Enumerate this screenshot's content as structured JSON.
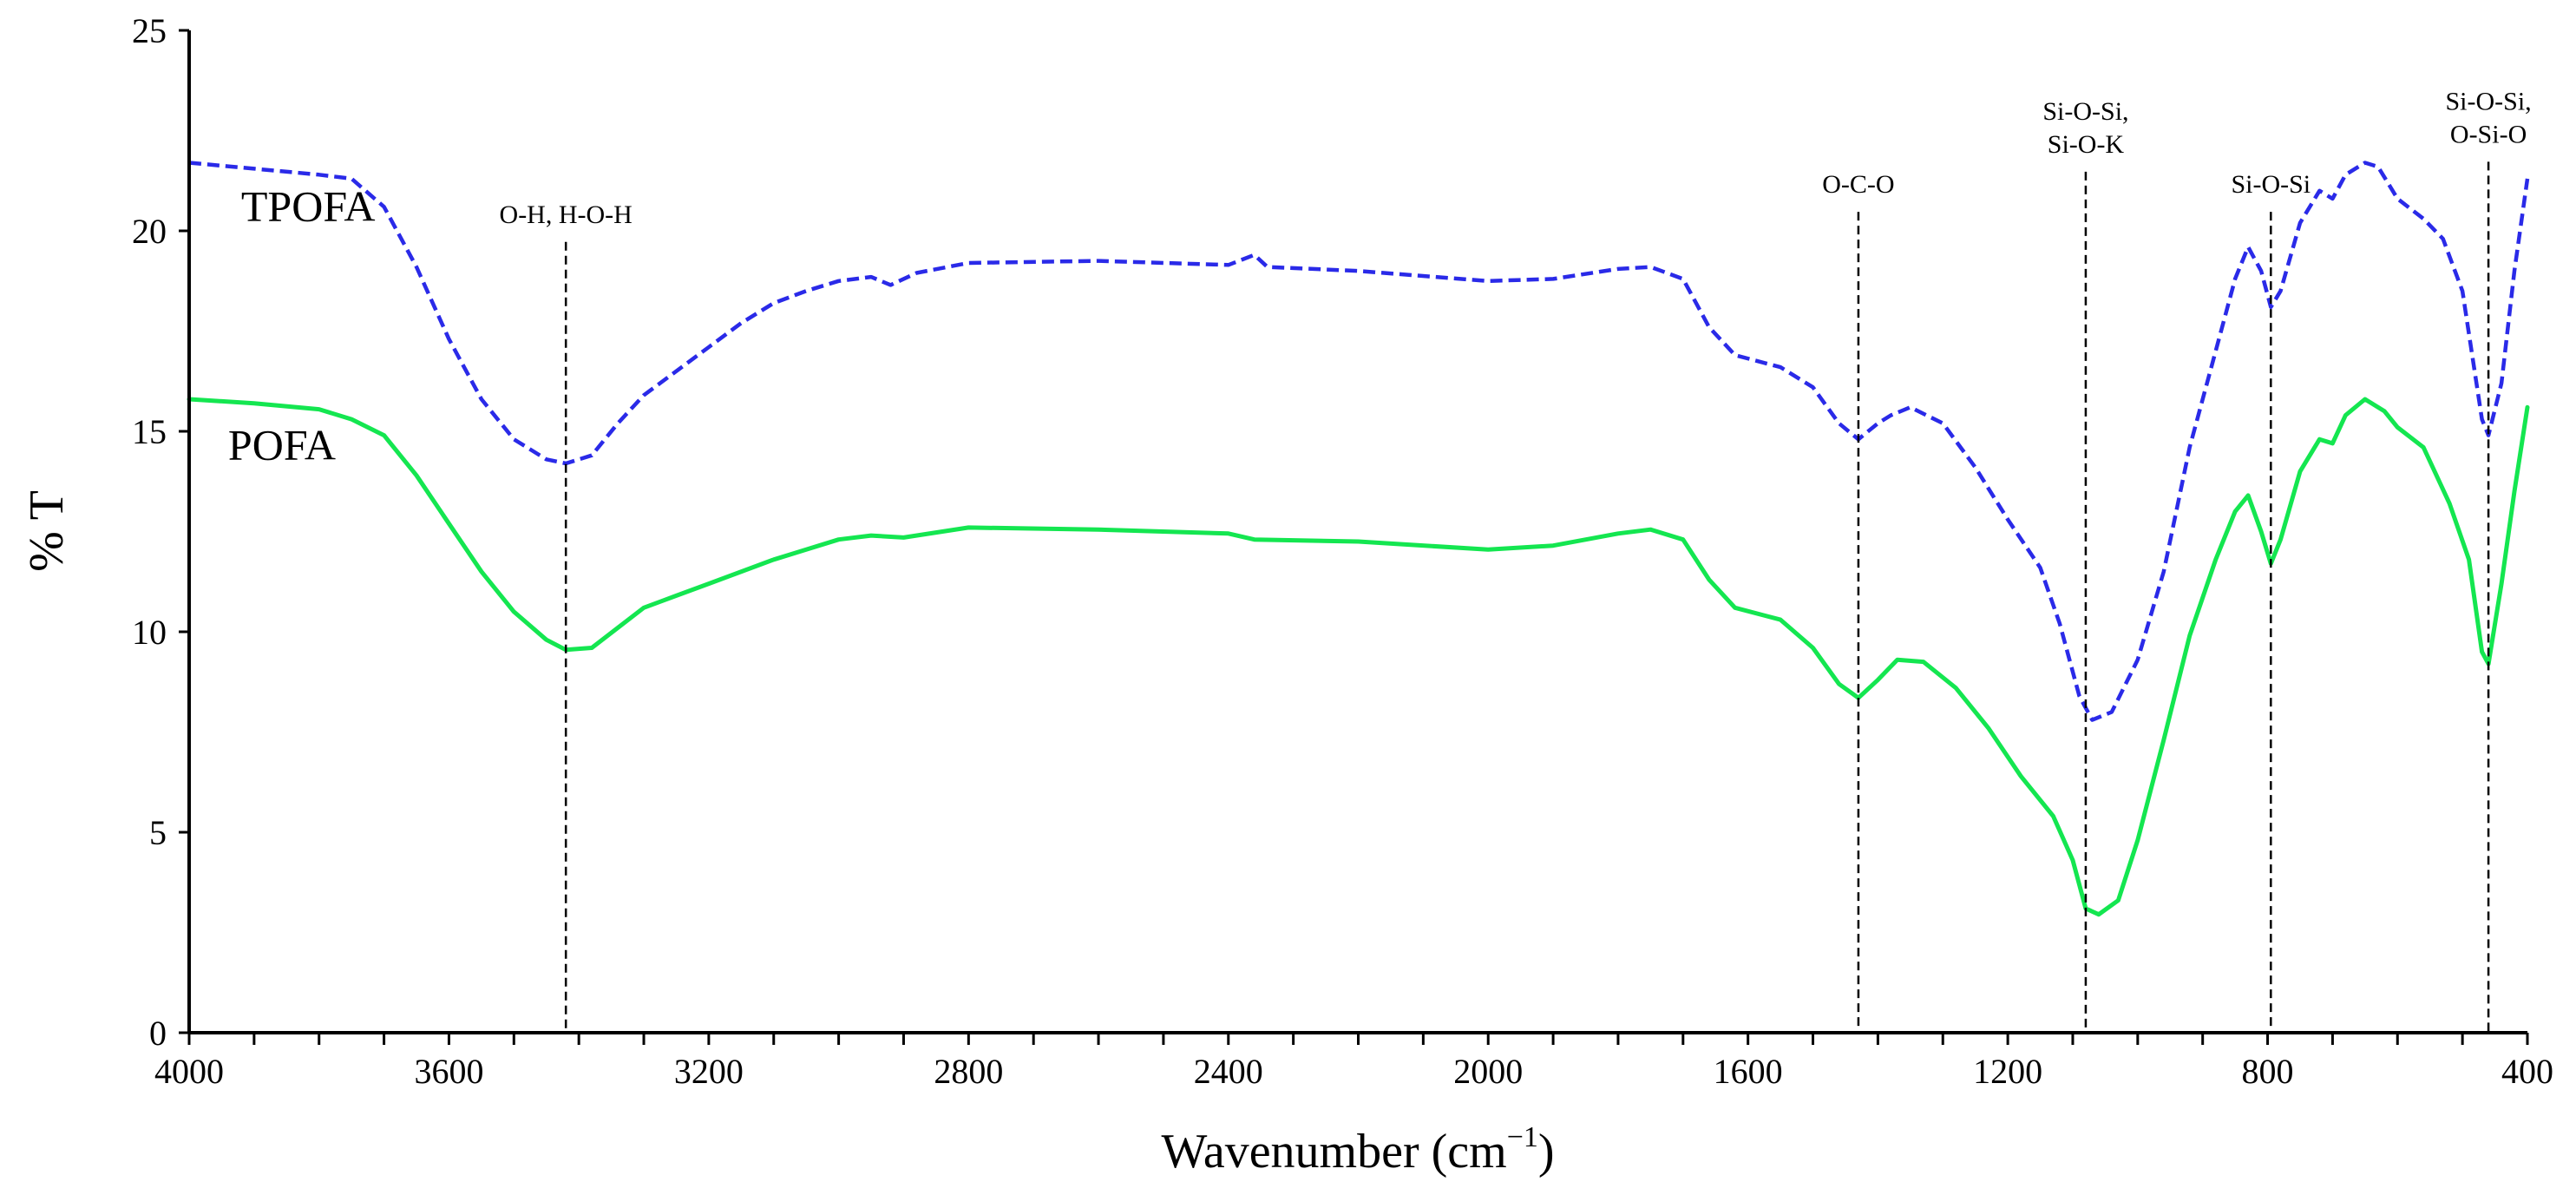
{
  "chart_data": {
    "type": "line",
    "title": "",
    "xlabel": "Wavenumber (cm",
    "xlabel_sup": "−1",
    "xlabel_close": ")",
    "ylabel": "% T",
    "xlim": [
      4000,
      400
    ],
    "ylim": [
      0,
      25
    ],
    "x_ticks": [
      4000,
      3600,
      3200,
      2800,
      2400,
      2000,
      1600,
      1200,
      800,
      400
    ],
    "y_ticks": [
      0,
      5,
      10,
      15,
      20,
      25
    ],
    "grid": false,
    "series": [
      {
        "name": "TPOFA",
        "color": "#2a2ae8",
        "style": "dashed",
        "points": [
          [
            4000,
            21.7
          ],
          [
            3900,
            21.55
          ],
          [
            3800,
            21.4
          ],
          [
            3750,
            21.3
          ],
          [
            3700,
            20.6
          ],
          [
            3650,
            19.1
          ],
          [
            3600,
            17.3
          ],
          [
            3550,
            15.8
          ],
          [
            3500,
            14.8
          ],
          [
            3450,
            14.3
          ],
          [
            3420,
            14.2
          ],
          [
            3380,
            14.4
          ],
          [
            3340,
            15.2
          ],
          [
            3300,
            15.9
          ],
          [
            3250,
            16.5
          ],
          [
            3200,
            17.1
          ],
          [
            3150,
            17.7
          ],
          [
            3100,
            18.2
          ],
          [
            3050,
            18.5
          ],
          [
            3000,
            18.75
          ],
          [
            2950,
            18.85
          ],
          [
            2920,
            18.65
          ],
          [
            2880,
            18.95
          ],
          [
            2800,
            19.2
          ],
          [
            2600,
            19.25
          ],
          [
            2400,
            19.15
          ],
          [
            2360,
            19.4
          ],
          [
            2340,
            19.1
          ],
          [
            2200,
            19.0
          ],
          [
            2000,
            18.75
          ],
          [
            1900,
            18.8
          ],
          [
            1800,
            19.05
          ],
          [
            1750,
            19.1
          ],
          [
            1700,
            18.8
          ],
          [
            1660,
            17.6
          ],
          [
            1620,
            16.9
          ],
          [
            1550,
            16.6
          ],
          [
            1500,
            16.1
          ],
          [
            1460,
            15.2
          ],
          [
            1430,
            14.8
          ],
          [
            1400,
            15.2
          ],
          [
            1380,
            15.4
          ],
          [
            1350,
            15.6
          ],
          [
            1300,
            15.2
          ],
          [
            1250,
            14.1
          ],
          [
            1200,
            12.8
          ],
          [
            1150,
            11.6
          ],
          [
            1120,
            10.2
          ],
          [
            1090,
            8.4
          ],
          [
            1070,
            7.8
          ],
          [
            1040,
            8.0
          ],
          [
            1000,
            9.3
          ],
          [
            960,
            11.5
          ],
          [
            920,
            14.6
          ],
          [
            880,
            17.0
          ],
          [
            850,
            18.8
          ],
          [
            830,
            19.6
          ],
          [
            810,
            19.0
          ],
          [
            795,
            18.1
          ],
          [
            780,
            18.5
          ],
          [
            750,
            20.2
          ],
          [
            720,
            21.0
          ],
          [
            700,
            20.8
          ],
          [
            680,
            21.4
          ],
          [
            650,
            21.7
          ],
          [
            630,
            21.6
          ],
          [
            600,
            20.8
          ],
          [
            560,
            20.3
          ],
          [
            530,
            19.8
          ],
          [
            500,
            18.5
          ],
          [
            470,
            15.3
          ],
          [
            460,
            14.9
          ],
          [
            440,
            16.2
          ],
          [
            420,
            19.0
          ],
          [
            400,
            21.3
          ]
        ]
      },
      {
        "name": "POFA",
        "color": "#14e650",
        "style": "solid",
        "points": [
          [
            4000,
            15.8
          ],
          [
            3900,
            15.7
          ],
          [
            3800,
            15.55
          ],
          [
            3750,
            15.3
          ],
          [
            3700,
            14.9
          ],
          [
            3650,
            13.9
          ],
          [
            3600,
            12.7
          ],
          [
            3550,
            11.5
          ],
          [
            3500,
            10.5
          ],
          [
            3450,
            9.8
          ],
          [
            3420,
            9.55
          ],
          [
            3380,
            9.6
          ],
          [
            3340,
            10.1
          ],
          [
            3300,
            10.6
          ],
          [
            3250,
            10.9
          ],
          [
            3200,
            11.2
          ],
          [
            3100,
            11.8
          ],
          [
            3000,
            12.3
          ],
          [
            2950,
            12.4
          ],
          [
            2900,
            12.35
          ],
          [
            2800,
            12.6
          ],
          [
            2600,
            12.55
          ],
          [
            2400,
            12.45
          ],
          [
            2360,
            12.3
          ],
          [
            2200,
            12.25
          ],
          [
            2000,
            12.05
          ],
          [
            1900,
            12.15
          ],
          [
            1800,
            12.45
          ],
          [
            1750,
            12.55
          ],
          [
            1700,
            12.3
          ],
          [
            1660,
            11.3
          ],
          [
            1620,
            10.6
          ],
          [
            1550,
            10.3
          ],
          [
            1500,
            9.6
          ],
          [
            1460,
            8.7
          ],
          [
            1430,
            8.35
          ],
          [
            1400,
            8.8
          ],
          [
            1370,
            9.3
          ],
          [
            1330,
            9.25
          ],
          [
            1280,
            8.6
          ],
          [
            1230,
            7.6
          ],
          [
            1180,
            6.4
          ],
          [
            1130,
            5.4
          ],
          [
            1100,
            4.3
          ],
          [
            1080,
            3.1
          ],
          [
            1060,
            2.95
          ],
          [
            1030,
            3.3
          ],
          [
            1000,
            4.8
          ],
          [
            960,
            7.3
          ],
          [
            920,
            9.9
          ],
          [
            880,
            11.8
          ],
          [
            850,
            13.0
          ],
          [
            830,
            13.4
          ],
          [
            810,
            12.5
          ],
          [
            795,
            11.7
          ],
          [
            780,
            12.3
          ],
          [
            750,
            14.0
          ],
          [
            720,
            14.8
          ],
          [
            700,
            14.7
          ],
          [
            680,
            15.4
          ],
          [
            650,
            15.8
          ],
          [
            620,
            15.5
          ],
          [
            600,
            15.1
          ],
          [
            560,
            14.6
          ],
          [
            520,
            13.2
          ],
          [
            490,
            11.8
          ],
          [
            470,
            9.5
          ],
          [
            460,
            9.2
          ],
          [
            440,
            11.2
          ],
          [
            420,
            13.5
          ],
          [
            400,
            15.6
          ]
        ]
      }
    ],
    "series_labels": [
      {
        "text": "TPOFA",
        "x": 3920,
        "y": 20.25
      },
      {
        "text": "POFA",
        "x": 3940,
        "y": 14.3
      }
    ],
    "annotations": [
      {
        "x": 3420,
        "lines": [
          "O-H, H-O-H"
        ],
        "label_y": 20.2
      },
      {
        "x": 1430,
        "lines": [
          "O-C-O"
        ],
        "label_y": 20.95
      },
      {
        "x": 1080,
        "lines": [
          "Si-O-Si,",
          "Si-O-K"
        ],
        "label_y": 21.95
      },
      {
        "x": 795,
        "lines": [
          "Si-O-Si"
        ],
        "label_y": 20.95
      },
      {
        "x": 460,
        "lines": [
          "Si-O-Si,",
          "O-Si-O"
        ],
        "label_y": 22.2
      }
    ]
  }
}
